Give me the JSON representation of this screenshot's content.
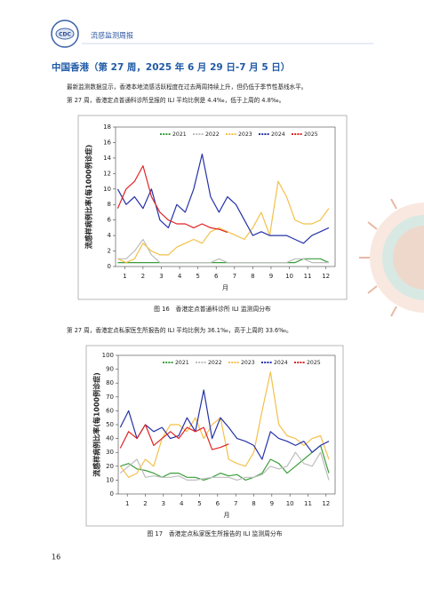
{
  "header": {
    "title": "流感监测周报"
  },
  "section": {
    "title": "中国香港（第 27 周，2025 年 6 月 29 日-7 月 5 日）",
    "paragraphs": [
      "最新监测数据显示，香港本地流感活跃程度在过去两周持续上升，但仍低于季节性基线水平。",
      "第 27 周，香港定点普通科诊所呈报的 ILI 平均比例是 4.4‰，低于上周的 4.8‰。",
      "第 27 周，香港定点私家医生所报告的 ILI 平均比例为 36.1‰，高于上周的 33.6‰。"
    ]
  },
  "chart_data": [
    {
      "type": "line",
      "caption": "图 16　香港定点普通科诊所 ILI 监测周分布",
      "y_label": "流感样病例比率(每1000例诊症)",
      "x_label": "月",
      "legend": "top",
      "x": [
        1,
        3,
        5,
        7,
        9,
        11,
        13,
        15,
        17,
        19,
        21,
        23,
        25,
        27,
        29,
        31,
        33,
        35,
        37,
        39,
        41,
        43,
        45,
        47,
        49,
        51
      ],
      "xlim": [
        0.5,
        52.5
      ],
      "xticks": [
        {
          "value": 2.67,
          "label": "1"
        },
        {
          "value": 7.0,
          "label": "2"
        },
        {
          "value": 11.33,
          "label": "3"
        },
        {
          "value": 15.67,
          "label": "4"
        },
        {
          "value": 20.0,
          "label": "5"
        },
        {
          "value": 24.33,
          "label": "6"
        },
        {
          "value": 28.67,
          "label": "7"
        },
        {
          "value": 33.0,
          "label": "8"
        },
        {
          "value": 37.33,
          "label": "9"
        },
        {
          "value": 41.67,
          "label": "10"
        },
        {
          "value": 46.0,
          "label": "11"
        },
        {
          "value": 50.33,
          "label": "12"
        }
      ],
      "ylim": [
        0,
        18
      ],
      "yticks": [
        0,
        2,
        4,
        6,
        8,
        10,
        12,
        14,
        16,
        18
      ],
      "series": [
        {
          "name": "2021",
          "color": "#3a9e3a",
          "values": [
            0.5,
            0.5,
            0.5,
            0.5,
            0.5,
            0.5,
            0.5,
            0.5,
            0.5,
            0.5,
            0.5,
            0.5,
            0.5,
            0.5,
            0.5,
            0.5,
            0.5,
            0.5,
            0.5,
            0.5,
            0.5,
            0.5,
            1,
            1,
            1,
            0.5
          ]
        },
        {
          "name": "2022",
          "color": "#bdbdbd",
          "values": [
            1,
            1,
            2,
            3.5,
            1.5,
            0.5,
            0.5,
            0.5,
            0.5,
            0.5,
            0.5,
            0.5,
            1,
            0.5,
            0.5,
            0.5,
            0.5,
            0.5,
            0.5,
            0.5,
            0.5,
            1,
            1,
            0.5,
            0.5,
            0.5
          ]
        },
        {
          "name": "2023",
          "color": "#f2c14a",
          "values": [
            1,
            0.5,
            1,
            3,
            2,
            1.5,
            1.5,
            2.5,
            3,
            3.5,
            3,
            4.5,
            5,
            4.5,
            4,
            3.5,
            5,
            7,
            4,
            11,
            9,
            6,
            5.5,
            5.5,
            6,
            7.5
          ]
        },
        {
          "name": "2024",
          "color": "#2633a8",
          "values": [
            10,
            8,
            9,
            7.5,
            10,
            6,
            5,
            8,
            7,
            10,
            14.5,
            9,
            7,
            9,
            8,
            6,
            4,
            4.5,
            4,
            4,
            4,
            3.5,
            3,
            4,
            4.5,
            5
          ]
        },
        {
          "name": "2025",
          "color": "#e02424",
          "values": [
            7.5,
            10,
            11,
            13,
            9,
            7,
            6,
            5.5,
            5.5,
            5,
            5.5,
            5,
            4.8,
            4.4,
            null,
            null,
            null,
            null,
            null,
            null,
            null,
            null,
            null,
            null,
            null,
            null
          ]
        }
      ]
    },
    {
      "type": "line",
      "caption": "图 17　香港定点私家医生所报告的 ILI 监测周分布",
      "y_label": "流感样病例比率(每1000例诊症)",
      "x_label": "月",
      "legend": "top",
      "x": [
        1,
        3,
        5,
        7,
        9,
        11,
        13,
        15,
        17,
        19,
        21,
        23,
        25,
        27,
        29,
        31,
        33,
        35,
        37,
        39,
        41,
        43,
        45,
        47,
        49,
        51
      ],
      "xlim": [
        0.5,
        52.5
      ],
      "xticks": [
        {
          "value": 2.67,
          "label": "1"
        },
        {
          "value": 7.0,
          "label": "2"
        },
        {
          "value": 11.33,
          "label": "3"
        },
        {
          "value": 15.67,
          "label": "4"
        },
        {
          "value": 20.0,
          "label": "5"
        },
        {
          "value": 24.33,
          "label": "6"
        },
        {
          "value": 28.67,
          "label": "7"
        },
        {
          "value": 33.0,
          "label": "8"
        },
        {
          "value": 37.33,
          "label": "9"
        },
        {
          "value": 41.67,
          "label": "10"
        },
        {
          "value": 46.0,
          "label": "11"
        },
        {
          "value": 50.33,
          "label": "12"
        }
      ],
      "ylim": [
        0,
        100
      ],
      "yticks": [
        0,
        10,
        20,
        30,
        40,
        50,
        60,
        70,
        80,
        90,
        100
      ],
      "series": [
        {
          "name": "2021",
          "color": "#3a9e3a",
          "values": [
            20,
            22,
            18,
            17,
            15,
            12,
            15,
            15,
            12,
            12,
            10,
            12,
            15,
            13,
            14,
            10,
            12,
            15,
            25,
            22,
            15,
            20,
            25,
            30,
            35,
            15
          ]
        },
        {
          "name": "2022",
          "color": "#bdbdbd",
          "values": [
            15,
            20,
            25,
            12,
            13,
            12,
            12,
            13,
            10,
            10,
            11,
            12,
            12,
            12,
            10,
            12,
            12,
            14,
            20,
            18,
            20,
            30,
            22,
            20,
            30,
            10
          ]
        },
        {
          "name": "2023",
          "color": "#f2c14a",
          "values": [
            20,
            12,
            15,
            25,
            20,
            40,
            50,
            50,
            45,
            55,
            40,
            50,
            55,
            25,
            22,
            20,
            30,
            60,
            88,
            50,
            42,
            40,
            35,
            40,
            42,
            25
          ]
        },
        {
          "name": "2024",
          "color": "#2633a8",
          "values": [
            48,
            60,
            40,
            50,
            45,
            48,
            40,
            42,
            55,
            45,
            75,
            40,
            55,
            48,
            40,
            38,
            35,
            25,
            45,
            40,
            38,
            35,
            38,
            30,
            35,
            38
          ]
        },
        {
          "name": "2025",
          "color": "#e02424",
          "values": [
            33,
            45,
            40,
            50,
            35,
            40,
            45,
            40,
            48,
            45,
            48,
            32,
            33.6,
            36.1,
            null,
            null,
            null,
            null,
            null,
            null,
            null,
            null,
            null,
            null,
            null,
            null
          ]
        }
      ]
    }
  ],
  "page_number": "16"
}
